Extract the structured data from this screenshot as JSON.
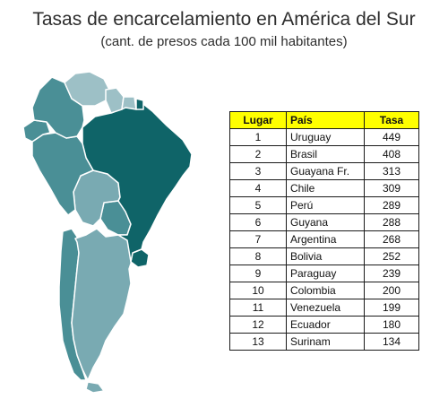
{
  "title": "Tasas de encarcelamiento en América del Sur",
  "subtitle": "(cant. de presos cada 100 mil habitantes)",
  "colors": {
    "dark": "#0f6468",
    "medium": "#4a8f96",
    "light": "#79aab2",
    "lightest": "#9dc0c6",
    "border": "#ffffff",
    "header": "#ffff00"
  },
  "table": {
    "headers": {
      "rank": "Lugar",
      "country": "País",
      "rate": "Tasa"
    },
    "rows": [
      {
        "rank": "1",
        "country": "Uruguay",
        "rate": "449"
      },
      {
        "rank": "2",
        "country": "Brasil",
        "rate": "408"
      },
      {
        "rank": "3",
        "country": "Guayana Fr.",
        "rate": "313"
      },
      {
        "rank": "4",
        "country": "Chile",
        "rate": "309"
      },
      {
        "rank": "5",
        "country": "Perú",
        "rate": "289"
      },
      {
        "rank": "6",
        "country": "Guyana",
        "rate": "288"
      },
      {
        "rank": "7",
        "country": "Argentina",
        "rate": "268"
      },
      {
        "rank": "8",
        "country": "Bolivia",
        "rate": "252"
      },
      {
        "rank": "9",
        "country": "Paraguay",
        "rate": "239"
      },
      {
        "rank": "10",
        "country": "Colombia",
        "rate": "200"
      },
      {
        "rank": "11",
        "country": "Venezuela",
        "rate": "199"
      },
      {
        "rank": "12",
        "country": "Ecuador",
        "rate": "180"
      },
      {
        "rank": "13",
        "country": "Surinam",
        "rate": "134"
      }
    ]
  }
}
